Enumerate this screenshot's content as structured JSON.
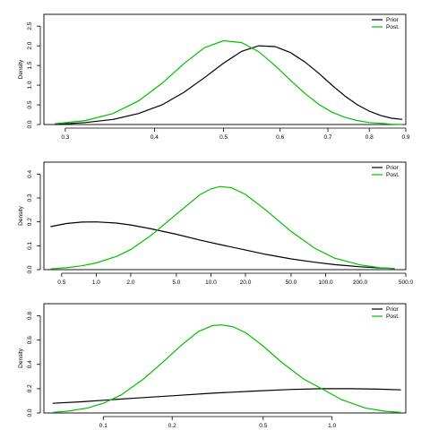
{
  "chart_data": [
    {
      "type": "line",
      "x_scale": "log",
      "xlim": [
        0.28,
        0.9
      ],
      "ylim": [
        0,
        2.8
      ],
      "x_ticks": [
        0.3,
        0.4,
        0.5,
        0.6,
        0.7,
        0.8,
        0.9
      ],
      "x_tick_labels": [
        "0.3",
        "0.4",
        "0.5",
        "0.6",
        "0.7",
        "0.8",
        "0.9"
      ],
      "y_ticks": [
        0.0,
        0.5,
        1.0,
        1.5,
        2.0,
        2.5
      ],
      "y_tick_labels": [
        "0.0",
        "0.5",
        "1.0",
        "1.5",
        "2.0",
        "2.5"
      ],
      "ylabel": "Density",
      "legend": {
        "position": "top-right"
      },
      "series": [
        {
          "name": "Prior",
          "color": "#000000",
          "x": [
            0.29,
            0.32,
            0.35,
            0.38,
            0.41,
            0.44,
            0.47,
            0.5,
            0.53,
            0.56,
            0.59,
            0.62,
            0.65,
            0.68,
            0.71,
            0.74,
            0.77,
            0.8,
            0.83,
            0.86,
            0.89
          ],
          "y": [
            0.0,
            0.05,
            0.13,
            0.28,
            0.5,
            0.82,
            1.19,
            1.56,
            1.86,
            2.0,
            1.98,
            1.83,
            1.59,
            1.3,
            0.99,
            0.72,
            0.5,
            0.34,
            0.23,
            0.16,
            0.13
          ]
        },
        {
          "name": "Post.",
          "color": "#00c000",
          "x": [
            0.29,
            0.32,
            0.35,
            0.38,
            0.41,
            0.44,
            0.47,
            0.5,
            0.53,
            0.56,
            0.59,
            0.62,
            0.65,
            0.68,
            0.71,
            0.74,
            0.77,
            0.8,
            0.83,
            0.86,
            0.89
          ],
          "y": [
            0.02,
            0.1,
            0.28,
            0.6,
            1.05,
            1.55,
            1.95,
            2.13,
            2.08,
            1.85,
            1.5,
            1.13,
            0.79,
            0.51,
            0.31,
            0.18,
            0.1,
            0.05,
            0.03,
            0.01,
            0.0
          ]
        }
      ]
    },
    {
      "type": "line",
      "x_scale": "log",
      "xlim": [
        0.35,
        500
      ],
      "ylim": [
        0,
        0.45
      ],
      "x_ticks": [
        0.5,
        1.0,
        2.0,
        5.0,
        10.0,
        20.0,
        50.0,
        100.0,
        200.0,
        500.0
      ],
      "x_tick_labels": [
        "0.5",
        "1.0",
        "2.0",
        "5.0",
        "10.0",
        "20.0",
        "50.0",
        "100.0",
        "200.0",
        "500.0"
      ],
      "y_ticks": [
        0.0,
        0.1,
        0.2,
        0.3,
        0.4
      ],
      "y_tick_labels": [
        "0.0",
        "0.1",
        "0.2",
        "0.3",
        "0.4"
      ],
      "ylabel": "Density",
      "legend": {
        "position": "top-right"
      },
      "series": [
        {
          "name": "Prior",
          "color": "#000000",
          "x": [
            0.4,
            0.55,
            0.75,
            1.0,
            1.5,
            2.0,
            3.0,
            5.0,
            8.0,
            12.0,
            20.0,
            30.0,
            50.0,
            80.0,
            120.0,
            200.0,
            300.0,
            400.0
          ],
          "y": [
            0.18,
            0.193,
            0.199,
            0.2,
            0.195,
            0.187,
            0.171,
            0.148,
            0.124,
            0.105,
            0.082,
            0.064,
            0.045,
            0.031,
            0.021,
            0.012,
            0.007,
            0.005
          ]
        },
        {
          "name": "Post.",
          "color": "#00c000",
          "x": [
            0.4,
            0.55,
            0.75,
            1.0,
            1.5,
            2.0,
            3.0,
            5.0,
            8.0,
            10.0,
            12.0,
            15.0,
            20.0,
            30.0,
            50.0,
            80.0,
            120.0,
            200.0,
            300.0,
            400.0
          ],
          "y": [
            0.003,
            0.008,
            0.016,
            0.028,
            0.055,
            0.084,
            0.143,
            0.232,
            0.313,
            0.338,
            0.348,
            0.343,
            0.315,
            0.25,
            0.16,
            0.09,
            0.048,
            0.02,
            0.008,
            0.004
          ]
        }
      ]
    },
    {
      "type": "line",
      "x_scale": "log",
      "xlim": [
        0.055,
        2.1
      ],
      "ylim": [
        0,
        0.9
      ],
      "x_ticks": [
        0.1,
        0.2,
        0.5,
        1.0
      ],
      "x_tick_labels": [
        "0.1",
        "0.2",
        "0.5",
        "1.0"
      ],
      "y_ticks": [
        0.0,
        0.2,
        0.4,
        0.6,
        0.8
      ],
      "y_tick_labels": [
        "0.0",
        "0.2",
        "0.4",
        "0.6",
        "0.8"
      ],
      "ylabel": "Density",
      "legend": {
        "position": "top-right"
      },
      "series": [
        {
          "name": "Prior",
          "color": "#000000",
          "x": [
            0.06,
            0.08,
            0.1,
            0.14,
            0.2,
            0.3,
            0.45,
            0.65,
            0.9,
            1.2,
            1.6,
            2.0
          ],
          "y": [
            0.08,
            0.092,
            0.105,
            0.123,
            0.142,
            0.163,
            0.18,
            0.193,
            0.2,
            0.2,
            0.196,
            0.19
          ]
        },
        {
          "name": "Post.",
          "color": "#00c000",
          "x": [
            0.06,
            0.07,
            0.085,
            0.1,
            0.12,
            0.15,
            0.18,
            0.22,
            0.26,
            0.3,
            0.33,
            0.37,
            0.42,
            0.5,
            0.6,
            0.75,
            0.9,
            1.1,
            1.4,
            1.7,
            2.0
          ],
          "y": [
            0.005,
            0.015,
            0.04,
            0.08,
            0.15,
            0.28,
            0.41,
            0.56,
            0.67,
            0.72,
            0.725,
            0.71,
            0.66,
            0.55,
            0.42,
            0.28,
            0.2,
            0.11,
            0.04,
            0.015,
            0.005
          ]
        }
      ]
    }
  ]
}
